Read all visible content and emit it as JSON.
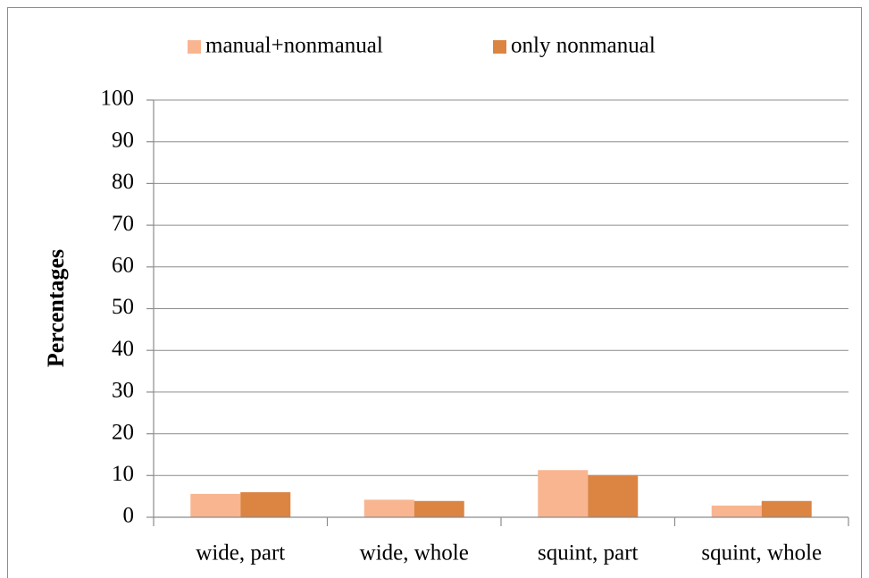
{
  "chart_data": {
    "type": "bar",
    "y_label": "Percentages",
    "categories": [
      "wide, part",
      "wide, whole",
      "squint, part",
      "squint, whole"
    ],
    "series": [
      {
        "name": "manual+nonmanual",
        "color": "#f8b590",
        "values": [
          5.6,
          4.2,
          11.3,
          2.8
        ]
      },
      {
        "name": "only nonmanual",
        "color": "#dc8442",
        "values": [
          6.0,
          3.9,
          10.1,
          3.9
        ]
      }
    ],
    "ylim": [
      0,
      100
    ],
    "yticks": [
      0,
      10,
      20,
      30,
      40,
      50,
      60,
      70,
      80,
      90,
      100
    ],
    "grid": true,
    "legend": "top"
  }
}
